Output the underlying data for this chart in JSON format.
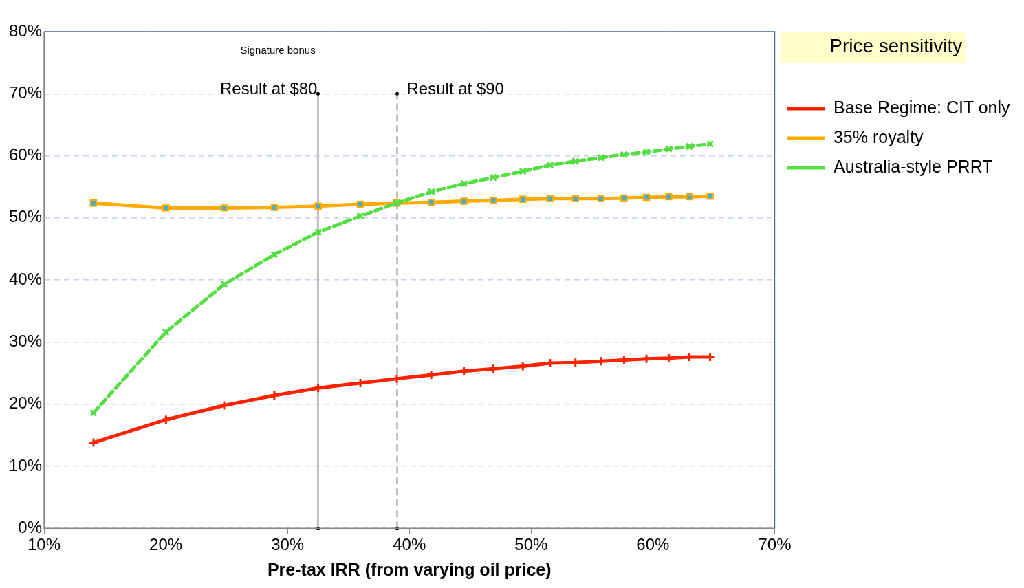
{
  "chart_data": {
    "type": "line",
    "xlabel": "Pre-tax IRR (from varying oil price)",
    "legend_title": "Price sensitivity",
    "legend": "top right",
    "grid": "y",
    "xlim": [
      10,
      70
    ],
    "xticks": [
      {
        "value": 10,
        "label": "10%"
      },
      {
        "value": 20,
        "label": "20%"
      },
      {
        "value": 30,
        "label": "30%"
      },
      {
        "value": 40,
        "label": "40%"
      },
      {
        "value": 50,
        "label": "50%"
      },
      {
        "value": 60,
        "label": "60%"
      },
      {
        "value": 70,
        "label": "70%"
      }
    ],
    "ylim": [
      0,
      80
    ],
    "yticks": [
      {
        "value": 0,
        "label": "0%"
      },
      {
        "value": 10,
        "label": "10%"
      },
      {
        "value": 20,
        "label": "20%"
      },
      {
        "value": 30,
        "label": "30%"
      },
      {
        "value": 40,
        "label": "40%"
      },
      {
        "value": 50,
        "label": "50%"
      },
      {
        "value": 60,
        "label": "60%"
      },
      {
        "value": 70,
        "label": "70%"
      },
      {
        "value": 80,
        "label": "80%"
      }
    ],
    "x": [
      14.06,
      20.01,
      24.79,
      28.91,
      32.51,
      35.98,
      38.97,
      41.8,
      44.48,
      46.9,
      49.32,
      51.55,
      53.64,
      55.74,
      57.63,
      59.47,
      61.3,
      63.0,
      64.7
    ],
    "series": [
      {
        "name": "Base Regime: CIT only",
        "color": "#ff2200",
        "marker": "cross",
        "line_style": "solid",
        "values": [
          13.8,
          17.5,
          19.8,
          21.4,
          22.6,
          23.4,
          24.1,
          24.7,
          25.3,
          25.7,
          26.1,
          26.6,
          26.7,
          26.9,
          27.1,
          27.3,
          27.4,
          27.6,
          27.6
        ]
      },
      {
        "name": "35% royalty",
        "color": "#ffaa00",
        "marker": "square",
        "line_style": "solid",
        "values": [
          52.4,
          51.6,
          51.6,
          51.7,
          51.9,
          52.2,
          52.4,
          52.5,
          52.7,
          52.8,
          53.0,
          53.1,
          53.1,
          53.1,
          53.2,
          53.3,
          53.4,
          53.4,
          53.5
        ]
      },
      {
        "name": "Australia-style PRRT",
        "color": "#55dd44",
        "marker": "crossRot",
        "line_style": "dashed",
        "values": [
          18.6,
          31.6,
          39.3,
          44.1,
          47.7,
          50.3,
          52.4,
          54.2,
          55.5,
          56.5,
          57.5,
          58.5,
          59.1,
          59.7,
          60.2,
          60.6,
          61.1,
          61.5,
          61.9
        ]
      }
    ],
    "ref_lines": [
      {
        "axis": "x",
        "value": 32.5,
        "label": "Result at $80",
        "color": "#c0c0c0",
        "line_style": "solid"
      },
      {
        "axis": "x",
        "value": 39,
        "label": "Result at $90",
        "color": "#c0c0c0",
        "line_style": "dashed"
      }
    ],
    "annotations": [
      "Signature bonus"
    ]
  }
}
